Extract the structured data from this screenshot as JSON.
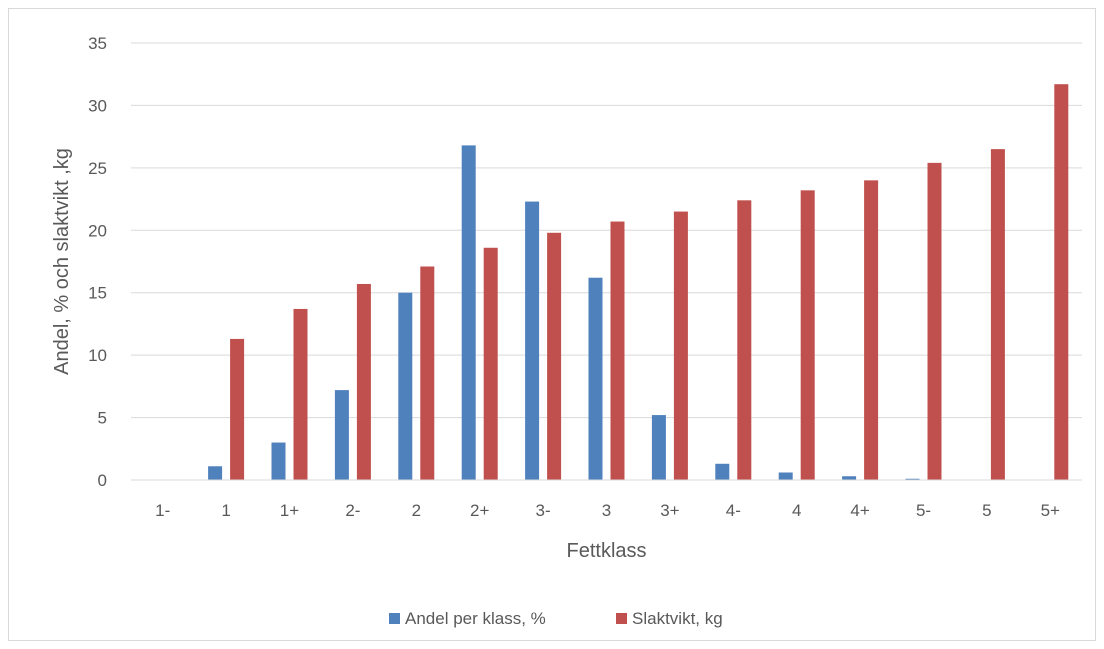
{
  "chart_data": {
    "type": "bar",
    "title": "",
    "xlabel": "Fettklass",
    "ylabel": "Andel, % och slaktvikt ,kg",
    "ylim": [
      0,
      35
    ],
    "yticks": [
      0,
      5,
      10,
      15,
      20,
      25,
      30,
      35
    ],
    "grid": true,
    "legend_position": "bottom",
    "categories": [
      "1-",
      "1",
      "1+",
      "2-",
      "2",
      "2+",
      "3-",
      "3",
      "3+",
      "4-",
      "4",
      "4+",
      "5-",
      "5",
      "5+"
    ],
    "series": [
      {
        "name": "Andel per klass, %",
        "color": "#4f81bd",
        "values": [
          0,
          1.1,
          3.0,
          7.2,
          15.0,
          26.8,
          22.3,
          16.2,
          5.2,
          1.3,
          0.6,
          0.3,
          0.1,
          0,
          0
        ]
      },
      {
        "name": "Slaktvikt, kg",
        "color": "#c0504d",
        "values": [
          0,
          11.3,
          13.7,
          15.7,
          17.1,
          18.6,
          19.8,
          20.7,
          21.5,
          22.4,
          23.2,
          24.0,
          25.4,
          26.5,
          31.7
        ]
      }
    ]
  }
}
